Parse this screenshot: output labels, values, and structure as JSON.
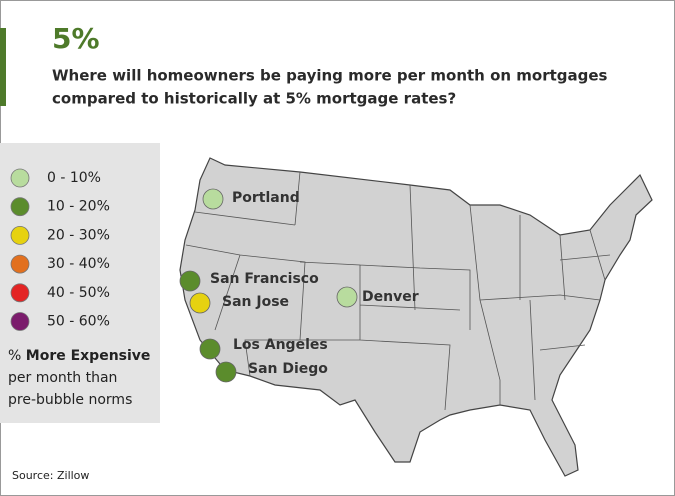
{
  "header": {
    "title": "5%",
    "question": [
      "Where will homeowners be paying more per month on mortgages",
      "compared to historically at 5% mortgage rates?"
    ]
  },
  "legend": {
    "items": [
      {
        "label": "0 - 10%",
        "color": "#b8dc9e"
      },
      {
        "label": "10 - 20%",
        "color": "#5b8c2c"
      },
      {
        "label": "20 - 30%",
        "color": "#e6d210"
      },
      {
        "label": "30 - 40%",
        "color": "#e2701e"
      },
      {
        "label": "40 - 50%",
        "color": "#e32424"
      },
      {
        "label": "50 - 60%",
        "color": "#7b1c6c"
      }
    ],
    "caption": {
      "prefix": "%",
      "bold": "More Expensive",
      "lines": [
        "per month than",
        "pre-bubble norms"
      ]
    }
  },
  "cities": [
    {
      "label": "Portland",
      "color": "#b8dc9e"
    },
    {
      "label": "San Francisco",
      "color": "#5b8c2c"
    },
    {
      "label": "San Jose",
      "color": "#e6d210"
    },
    {
      "label": "Denver",
      "color": "#b8dc9e"
    },
    {
      "label": "Los Angeles",
      "color": "#5b8c2c"
    },
    {
      "label": "San Diego",
      "color": "#5b8c2c"
    }
  ],
  "source": "Source: Zillow"
}
